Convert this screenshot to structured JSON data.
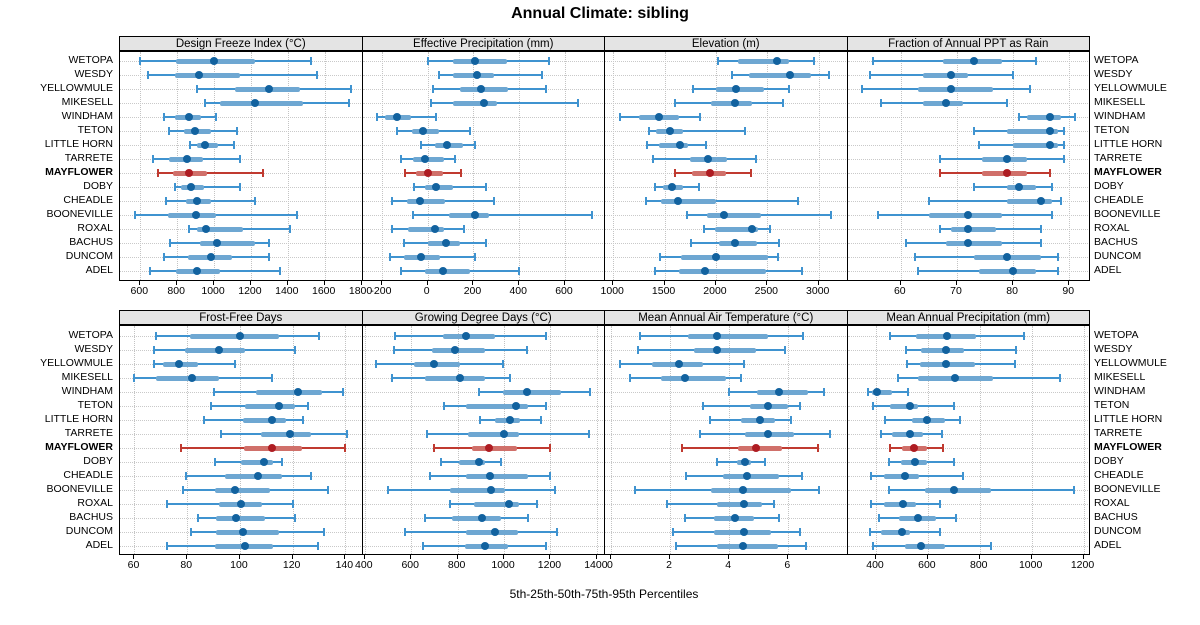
{
  "chart_data": {
    "type": "interval-dot",
    "title": "Annual Climate: sibling",
    "footer": "5th-25th-50th-75th-95th Percentiles",
    "percentiles": [
      "5th",
      "25th",
      "50th",
      "75th",
      "95th"
    ],
    "locations": [
      "WETOPA",
      "WESDY",
      "YELLOWMULE",
      "MIKESELL",
      "WINDHAM",
      "TETON",
      "LITTLE HORN",
      "TARRETE",
      "MAYFLOWER",
      "DOBY",
      "CHEADLE",
      "BOONEVILLE",
      "ROXAL",
      "BACHUS",
      "DUNCOM",
      "ADEL"
    ],
    "highlight_location": "MAYFLOWER",
    "legend": "none",
    "grid": "dotted",
    "colors": {
      "normal_line": "#3f93d0",
      "normal_band": "#6ea7d2",
      "normal_dot": "#12629f",
      "highlight_line": "#c03a30",
      "highlight_band": "#d0706a",
      "highlight_dot": "#ae1c22",
      "header_bg": "#e4e4e4",
      "gridline": "#c8c8c8",
      "border": "#000000"
    },
    "panels": [
      {
        "title": "Design Freeze Index (°C)",
        "row": 0,
        "col": 0,
        "range": [
          490,
          1805
        ],
        "ticks": [
          600,
          800,
          1000,
          1200,
          1400,
          1600,
          1800
        ],
        "values": [
          [
            600,
            795,
            1000,
            1220,
            1525
          ],
          [
            640,
            790,
            920,
            1140,
            1560
          ],
          [
            910,
            1115,
            1300,
            1465,
            1740
          ],
          [
            950,
            1030,
            1220,
            1480,
            1730
          ],
          [
            730,
            790,
            865,
            930,
            1010
          ],
          [
            755,
            835,
            895,
            985,
            1125
          ],
          [
            870,
            910,
            950,
            1020,
            1110
          ],
          [
            670,
            755,
            855,
            940,
            1140
          ],
          [
            695,
            775,
            865,
            960,
            1265
          ],
          [
            790,
            820,
            875,
            945,
            1140
          ],
          [
            740,
            850,
            910,
            985,
            1220
          ],
          [
            570,
            750,
            900,
            1010,
            1450
          ],
          [
            865,
            910,
            955,
            1155,
            1410
          ],
          [
            760,
            925,
            1015,
            1220,
            1300
          ],
          [
            730,
            860,
            985,
            1095,
            1300
          ],
          [
            650,
            795,
            905,
            1030,
            1355
          ]
        ]
      },
      {
        "title": "Effective Precipitation (mm)",
        "row": 0,
        "col": 1,
        "range": [
          -285,
          775
        ],
        "ticks": [
          -200,
          0,
          200,
          400,
          600
        ],
        "values": [
          [
            0,
            110,
            205,
            345,
            530
          ],
          [
            50,
            110,
            215,
            290,
            500
          ],
          [
            25,
            140,
            235,
            350,
            515
          ],
          [
            15,
            110,
            245,
            305,
            655
          ],
          [
            -220,
            -185,
            -135,
            -75,
            35
          ],
          [
            -135,
            -70,
            -20,
            50,
            185
          ],
          [
            -30,
            30,
            85,
            155,
            205
          ],
          [
            -115,
            -65,
            -10,
            70,
            120
          ],
          [
            -100,
            -50,
            0,
            65,
            145
          ],
          [
            -60,
            -10,
            35,
            110,
            255
          ],
          [
            -155,
            -90,
            -35,
            75,
            290
          ],
          [
            -65,
            95,
            205,
            270,
            720
          ],
          [
            -155,
            -85,
            30,
            70,
            160
          ],
          [
            -105,
            0,
            80,
            140,
            255
          ],
          [
            -165,
            -105,
            -30,
            55,
            205
          ],
          [
            -115,
            -10,
            65,
            185,
            400
          ]
        ]
      },
      {
        "title": "Elevation (m)",
        "row": 0,
        "col": 2,
        "range": [
          920,
          3280
        ],
        "ticks": [
          1000,
          1500,
          2000,
          2500,
          3000
        ],
        "values": [
          [
            2015,
            2210,
            2590,
            2715,
            2955
          ],
          [
            2160,
            2325,
            2725,
            2925,
            3100
          ],
          [
            1775,
            2000,
            2195,
            2470,
            2715
          ],
          [
            1600,
            1950,
            2190,
            2355,
            2650
          ],
          [
            1065,
            1255,
            1450,
            1640,
            1840
          ],
          [
            1345,
            1415,
            1555,
            1675,
            2280
          ],
          [
            1330,
            1450,
            1650,
            1725,
            1900
          ],
          [
            1385,
            1750,
            1925,
            2105,
            2390
          ],
          [
            1600,
            1765,
            1940,
            2095,
            2340
          ],
          [
            1405,
            1480,
            1570,
            1675,
            1830
          ],
          [
            1320,
            1465,
            1635,
            2005,
            2795
          ],
          [
            1715,
            1910,
            2080,
            2440,
            3120
          ],
          [
            1880,
            1995,
            2350,
            2405,
            2525
          ],
          [
            1760,
            2025,
            2190,
            2395,
            2615
          ],
          [
            1460,
            1655,
            2000,
            2505,
            2600
          ],
          [
            1405,
            1640,
            1890,
            2490,
            2840
          ]
        ]
      },
      {
        "title": "Fraction of Annual PPT as Rain",
        "row": 0,
        "col": 3,
        "range": [
          50.5,
          93.7
        ],
        "ticks": [
          60,
          70,
          80,
          90
        ],
        "values": [
          [
            55,
            67.5,
            73,
            78,
            84
          ],
          [
            54.5,
            64,
            69,
            72,
            80
          ],
          [
            53,
            63,
            69,
            76.5,
            83
          ],
          [
            56.5,
            64,
            68,
            71,
            79
          ],
          [
            81,
            82.5,
            86.5,
            88.5,
            91
          ],
          [
            73,
            79,
            86.5,
            88,
            89
          ],
          [
            74,
            80,
            86.5,
            88,
            89
          ],
          [
            67,
            74.5,
            79,
            82.5,
            89
          ],
          [
            67,
            74.5,
            79,
            82.5,
            86.5
          ],
          [
            73,
            79,
            81,
            84,
            87
          ],
          [
            65,
            79,
            85,
            87,
            88.5
          ],
          [
            56,
            65,
            72,
            78,
            87
          ],
          [
            67,
            69,
            72,
            77,
            85
          ],
          [
            61,
            68,
            72,
            78,
            85
          ],
          [
            62.5,
            73,
            79,
            85,
            88
          ],
          [
            63,
            74,
            80,
            84,
            88
          ]
        ]
      },
      {
        "title": "Frost-Free Days",
        "row": 1,
        "col": 0,
        "range": [
          54.5,
          146.5
        ],
        "ticks": [
          60,
          80,
          100,
          120,
          140
        ],
        "values": [
          [
            68,
            81,
            100,
            115,
            130
          ],
          [
            67.5,
            79,
            92,
            102,
            121
          ],
          [
            67.5,
            71,
            77,
            84,
            98
          ],
          [
            60,
            68,
            82,
            92,
            112
          ],
          [
            90,
            106,
            122,
            131,
            139
          ],
          [
            89,
            102,
            115,
            121,
            126
          ],
          [
            86.5,
            101,
            112,
            117.5,
            124
          ],
          [
            93,
            108,
            119,
            127,
            140.5
          ],
          [
            77.5,
            101.5,
            112,
            123.5,
            140
          ],
          [
            90.5,
            100.5,
            109,
            112.5,
            116
          ],
          [
            79.5,
            94.5,
            107,
            116,
            127
          ],
          [
            78.5,
            90.5,
            98,
            111.5,
            133.5
          ],
          [
            72.5,
            92,
            100.5,
            108.5,
            120
          ],
          [
            84,
            91,
            98.5,
            109.5,
            121
          ],
          [
            81.5,
            91,
            101,
            115,
            132
          ],
          [
            72.5,
            90.5,
            102,
            112.5,
            129.5
          ]
        ]
      },
      {
        "title": "Growing Degree Days (°C)",
        "row": 1,
        "col": 1,
        "range": [
          390,
          1435
        ],
        "ticks": [
          400,
          600,
          800,
          1000,
          1200,
          1400
        ],
        "values": [
          [
            530,
            735,
            835,
            960,
            1180
          ],
          [
            525,
            690,
            790,
            920,
            1100
          ],
          [
            450,
            610,
            700,
            810,
            995
          ],
          [
            515,
            660,
            810,
            920,
            1025
          ],
          [
            890,
            995,
            1100,
            1245,
            1370
          ],
          [
            740,
            835,
            1050,
            1105,
            1180
          ],
          [
            895,
            960,
            1025,
            1070,
            1160
          ],
          [
            670,
            845,
            1000,
            1065,
            1365
          ],
          [
            700,
            860,
            935,
            1055,
            1200
          ],
          [
            730,
            805,
            890,
            920,
            985
          ],
          [
            680,
            835,
            940,
            1105,
            1200
          ],
          [
            500,
            765,
            945,
            1005,
            1220
          ],
          [
            765,
            870,
            1020,
            1065,
            1140
          ],
          [
            660,
            775,
            905,
            985,
            1105
          ],
          [
            575,
            835,
            960,
            1060,
            1230
          ],
          [
            650,
            830,
            920,
            1015,
            1180
          ]
        ]
      },
      {
        "title": "Mean Annual Air Temperature (°C)",
        "row": 1,
        "col": 2,
        "range": [
          -0.2,
          8.0
        ],
        "ticks": [
          0,
          2,
          4,
          6
        ],
        "values": [
          [
            1.0,
            2.6,
            3.6,
            5.3,
            6.5
          ],
          [
            0.9,
            2.8,
            3.6,
            4.9,
            5.9
          ],
          [
            0.3,
            1.4,
            2.3,
            3.1,
            4.5
          ],
          [
            0.65,
            1.7,
            2.5,
            3.9,
            4.4
          ],
          [
            4.0,
            4.95,
            5.7,
            6.65,
            7.2
          ],
          [
            3.1,
            4.7,
            5.3,
            6.0,
            6.4
          ],
          [
            3.35,
            4.4,
            5.05,
            5.55,
            6.1
          ],
          [
            3.0,
            4.55,
            5.3,
            6.2,
            7.4
          ],
          [
            2.4,
            4.3,
            4.9,
            5.8,
            7.0
          ],
          [
            3.6,
            4.25,
            4.55,
            4.75,
            5.2
          ],
          [
            2.55,
            3.8,
            4.6,
            5.7,
            6.45
          ],
          [
            0.8,
            3.4,
            4.45,
            6.1,
            7.05
          ],
          [
            1.9,
            3.6,
            4.5,
            5.1,
            5.5
          ],
          [
            2.5,
            3.5,
            4.2,
            4.85,
            5.7
          ],
          [
            2.1,
            3.5,
            4.5,
            5.4,
            6.4
          ],
          [
            2.2,
            3.6,
            4.45,
            5.65,
            6.6
          ]
        ]
      },
      {
        "title": "Mean Annual Precipitation (mm)",
        "row": 1,
        "col": 3,
        "range": [
          290,
          1225
        ],
        "ticks": [
          400,
          600,
          800,
          1000,
          1200
        ],
        "values": [
          [
            455,
            555,
            675,
            785,
            970
          ],
          [
            515,
            575,
            670,
            740,
            940
          ],
          [
            520,
            570,
            670,
            780,
            935
          ],
          [
            485,
            560,
            705,
            850,
            1110
          ],
          [
            370,
            385,
            405,
            460,
            525
          ],
          [
            390,
            455,
            530,
            560,
            700
          ],
          [
            435,
            540,
            595,
            665,
            725
          ],
          [
            420,
            460,
            530,
            580,
            655
          ],
          [
            455,
            500,
            545,
            595,
            660
          ],
          [
            450,
            495,
            550,
            595,
            700
          ],
          [
            380,
            430,
            510,
            565,
            735
          ],
          [
            450,
            590,
            700,
            845,
            1165
          ],
          [
            380,
            430,
            505,
            555,
            645
          ],
          [
            410,
            490,
            560,
            630,
            710
          ],
          [
            375,
            420,
            500,
            530,
            645
          ],
          [
            390,
            510,
            575,
            665,
            845
          ]
        ]
      }
    ]
  }
}
